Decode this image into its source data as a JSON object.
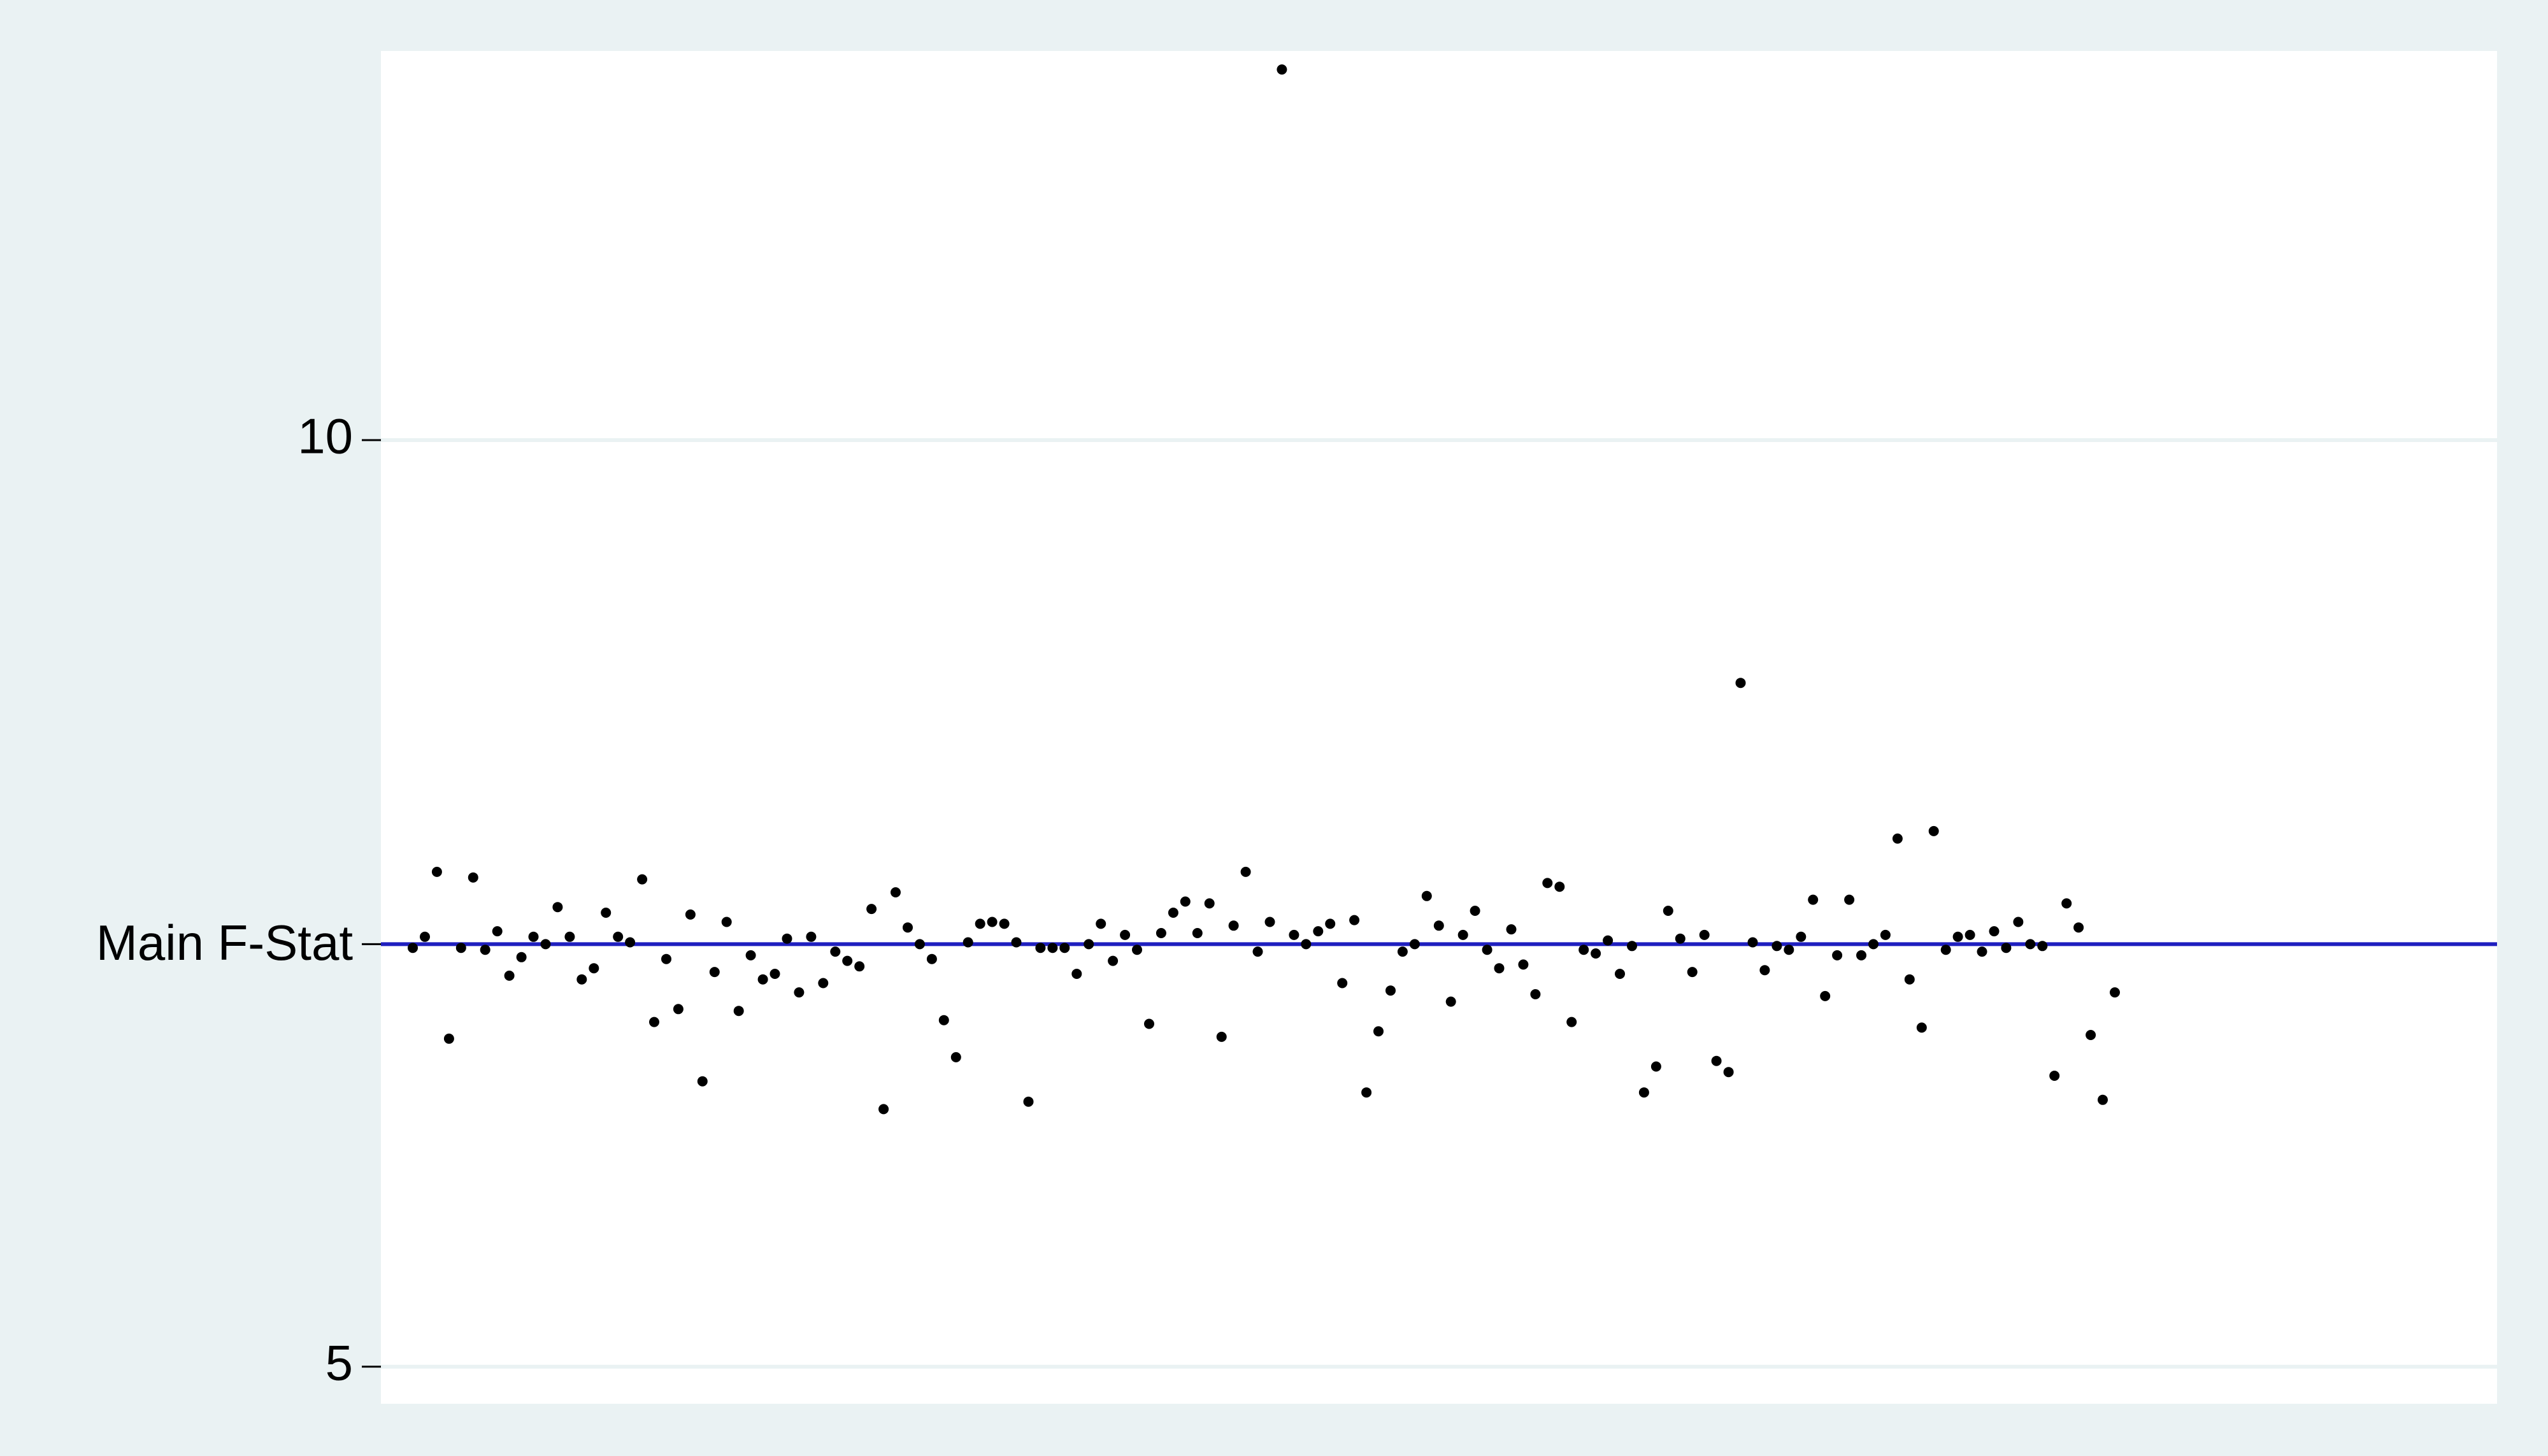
{
  "chart_data": {
    "type": "scatter",
    "title": "",
    "xlabel": "",
    "ylabel": "",
    "ylim": [
      4.8,
      12.1
    ],
    "xlim": [
      0,
      160
    ],
    "grid": true,
    "legend": "none",
    "yticks": [
      {
        "value": 10,
        "label": "10"
      },
      {
        "value": 5,
        "label": "5"
      }
    ],
    "reference_line": {
      "value": 7.28,
      "label": "Main F-Stat",
      "color": "#1f1fbf"
    },
    "colors": {
      "plot_bg": "#ffffff",
      "outer_bg": "#eaf2f3",
      "grid": "#eaf2f3",
      "points": "#000000"
    },
    "points": [
      [
        1,
        7.26
      ],
      [
        2,
        7.32
      ],
      [
        3,
        7.67
      ],
      [
        4,
        6.77
      ],
      [
        5,
        7.26
      ],
      [
        6,
        7.64
      ],
      [
        7,
        7.25
      ],
      [
        8,
        7.35
      ],
      [
        9,
        7.11
      ],
      [
        10,
        7.21
      ],
      [
        11,
        7.32
      ],
      [
        12,
        7.28
      ],
      [
        13,
        7.48
      ],
      [
        14,
        7.32
      ],
      [
        15,
        7.09
      ],
      [
        16,
        7.15
      ],
      [
        17,
        7.45
      ],
      [
        18,
        7.32
      ],
      [
        19,
        7.29
      ],
      [
        20,
        7.63
      ],
      [
        21,
        6.86
      ],
      [
        22,
        7.2
      ],
      [
        23,
        6.93
      ],
      [
        24,
        7.44
      ],
      [
        25,
        6.54
      ],
      [
        26,
        7.13
      ],
      [
        27,
        7.4
      ],
      [
        28,
        6.92
      ],
      [
        29,
        7.22
      ],
      [
        30,
        7.09
      ],
      [
        31,
        7.12
      ],
      [
        32,
        7.31
      ],
      [
        33,
        7.02
      ],
      [
        34,
        7.32
      ],
      [
        35,
        7.07
      ],
      [
        36,
        7.24
      ],
      [
        37,
        7.19
      ],
      [
        38,
        7.16
      ],
      [
        39,
        7.47
      ],
      [
        40,
        6.39
      ],
      [
        41,
        7.56
      ],
      [
        42,
        7.37
      ],
      [
        43,
        7.28
      ],
      [
        44,
        7.2
      ],
      [
        45,
        6.87
      ],
      [
        46,
        6.67
      ],
      [
        47,
        7.29
      ],
      [
        48,
        7.39
      ],
      [
        49,
        7.4
      ],
      [
        50,
        7.39
      ],
      [
        51,
        7.29
      ],
      [
        52,
        6.43
      ],
      [
        53,
        7.26
      ],
      [
        54,
        7.26
      ],
      [
        55,
        7.26
      ],
      [
        56,
        7.12
      ],
      [
        57,
        7.28
      ],
      [
        58,
        7.39
      ],
      [
        59,
        7.19
      ],
      [
        60,
        7.33
      ],
      [
        61,
        7.25
      ],
      [
        62,
        6.85
      ],
      [
        63,
        7.34
      ],
      [
        64,
        7.45
      ],
      [
        65,
        7.51
      ],
      [
        66,
        7.34
      ],
      [
        67,
        7.5
      ],
      [
        68,
        6.78
      ],
      [
        69,
        7.38
      ],
      [
        70,
        7.67
      ],
      [
        71,
        7.24
      ],
      [
        72,
        7.4
      ],
      [
        73,
        12.0
      ],
      [
        74,
        7.33
      ],
      [
        75,
        7.28
      ],
      [
        76,
        7.35
      ],
      [
        77,
        7.39
      ],
      [
        78,
        7.07
      ],
      [
        79,
        7.41
      ],
      [
        80,
        6.48
      ],
      [
        81,
        6.81
      ],
      [
        82,
        7.03
      ],
      [
        83,
        7.24
      ],
      [
        84,
        7.28
      ],
      [
        85,
        7.54
      ],
      [
        86,
        7.38
      ],
      [
        87,
        6.97
      ],
      [
        88,
        7.33
      ],
      [
        89,
        7.46
      ],
      [
        90,
        7.25
      ],
      [
        91,
        7.15
      ],
      [
        92,
        7.36
      ],
      [
        93,
        7.17
      ],
      [
        94,
        7.01
      ],
      [
        95,
        7.61
      ],
      [
        96,
        7.59
      ],
      [
        97,
        6.86
      ],
      [
        98,
        7.25
      ],
      [
        99,
        7.23
      ],
      [
        100,
        7.3
      ],
      [
        101,
        7.12
      ],
      [
        102,
        7.27
      ],
      [
        103,
        6.48
      ],
      [
        104,
        6.62
      ],
      [
        105,
        7.46
      ],
      [
        106,
        7.31
      ],
      [
        107,
        7.13
      ],
      [
        108,
        7.33
      ],
      [
        109,
        6.65
      ],
      [
        110,
        6.59
      ],
      [
        111,
        8.69
      ],
      [
        112,
        7.29
      ],
      [
        113,
        7.14
      ],
      [
        114,
        7.27
      ],
      [
        115,
        7.25
      ],
      [
        116,
        7.32
      ],
      [
        117,
        7.52
      ],
      [
        118,
        7.0
      ],
      [
        119,
        7.22
      ],
      [
        120,
        7.52
      ],
      [
        121,
        7.22
      ],
      [
        122,
        7.28
      ],
      [
        123,
        7.33
      ],
      [
        124,
        7.85
      ],
      [
        125,
        7.09
      ],
      [
        126,
        6.83
      ],
      [
        127,
        7.89
      ],
      [
        128,
        7.25
      ],
      [
        129,
        7.32
      ],
      [
        130,
        7.33
      ],
      [
        131,
        7.24
      ],
      [
        132,
        7.35
      ],
      [
        133,
        7.26
      ],
      [
        134,
        7.4
      ],
      [
        135,
        7.28
      ],
      [
        136,
        7.27
      ],
      [
        137,
        6.57
      ],
      [
        138,
        7.5
      ],
      [
        139,
        7.37
      ],
      [
        140,
        6.79
      ],
      [
        141,
        6.44
      ],
      [
        142,
        7.02
      ]
    ]
  }
}
